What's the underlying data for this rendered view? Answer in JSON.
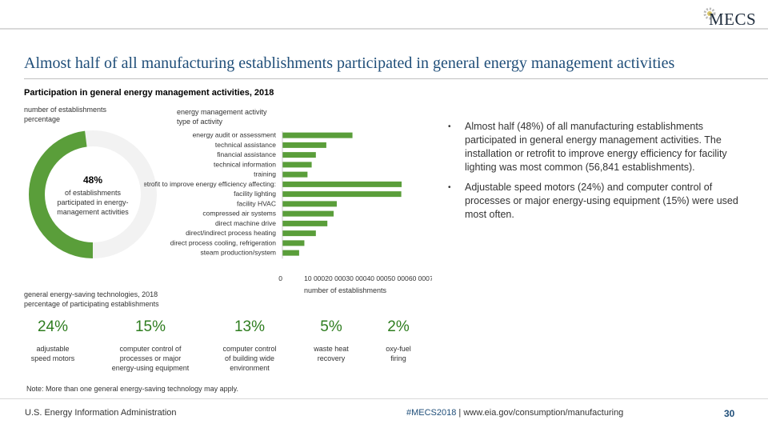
{
  "brand": {
    "logo_text": "MECS"
  },
  "title": "Almost half of all manufacturing establishments participated in general energy management activities",
  "subtitle": "Participation in general energy management activities, 2018",
  "donut": {
    "label_line1": "number of establishments",
    "label_line2": "percentage",
    "value_text": "48%",
    "desc_line1": "of establishments",
    "desc_line2": "participated in energy-",
    "desc_line3": "management activities",
    "value": 48,
    "fill_color": "#5a9e3a",
    "track_color": "#f2f2f2"
  },
  "activity_header": {
    "line1": "energy management activity",
    "line2": "type of activity"
  },
  "chart_data": [
    {
      "type": "bar",
      "orientation": "horizontal",
      "title": "",
      "xlabel": "number of establishments",
      "ylabel": "",
      "categories": [
        "energy audit or assessment",
        "technical assistance",
        "financial assistance",
        "technical information",
        "training",
        "installation or retrofit to improve energy efficiency affecting:",
        "facility lighting",
        "facility HVAC",
        "compressed air systems",
        "direct machine drive",
        "direct/indirect process heating",
        "direct process cooling, refrigeration",
        "steam production/system"
      ],
      "values": [
        33500,
        21000,
        16000,
        14000,
        12000,
        57000,
        56841,
        26000,
        24500,
        21500,
        16000,
        10500,
        8000
      ],
      "x_tick_labels": [
        "0",
        "10 000",
        "20 000",
        "30 000",
        "40 000",
        "50 000",
        "60 000",
        "70 000"
      ],
      "xlim": [
        0,
        70000
      ],
      "bar_color": "#5a9e3a"
    },
    {
      "type": "pie",
      "title": "",
      "values": [
        48,
        52
      ],
      "colors": [
        "#5a9e3a",
        "#f2f2f2"
      ]
    }
  ],
  "bullets": [
    "Almost half (48%) of all manufacturing establishments participated in general energy management activities. The installation or retrofit to improve energy efficiency for facility lighting was most common (56,841 establishments).",
    "Adjustable speed motors (24%) and computer control of processes or major energy-using equipment (15%) were used most often."
  ],
  "technologies": {
    "heading_line1": "general energy-saving technologies, 2018",
    "heading_line2": "percentage of participating establishments",
    "items": [
      {
        "pct": "24%",
        "label_line1": "adjustable",
        "label_line2": "speed motors",
        "label_line3": ""
      },
      {
        "pct": "15%",
        "label_line1": "computer control of",
        "label_line2": "processes or major",
        "label_line3": "energy-using equipment"
      },
      {
        "pct": "13%",
        "label_line1": "computer control",
        "label_line2": "of building wide",
        "label_line3": "environment"
      },
      {
        "pct": "5%",
        "label_line1": "waste heat",
        "label_line2": "recovery",
        "label_line3": ""
      },
      {
        "pct": "2%",
        "label_line1": "oxy-fuel",
        "label_line2": "firing",
        "label_line3": ""
      }
    ]
  },
  "note": "Note: More than one general energy-saving technology may apply.",
  "footer": {
    "left": "U.S. Energy Information Administration",
    "hashtag": "#MECS2018",
    "sep": " | ",
    "url": "www.eia.gov/consumption/manufacturing",
    "page": "30"
  }
}
